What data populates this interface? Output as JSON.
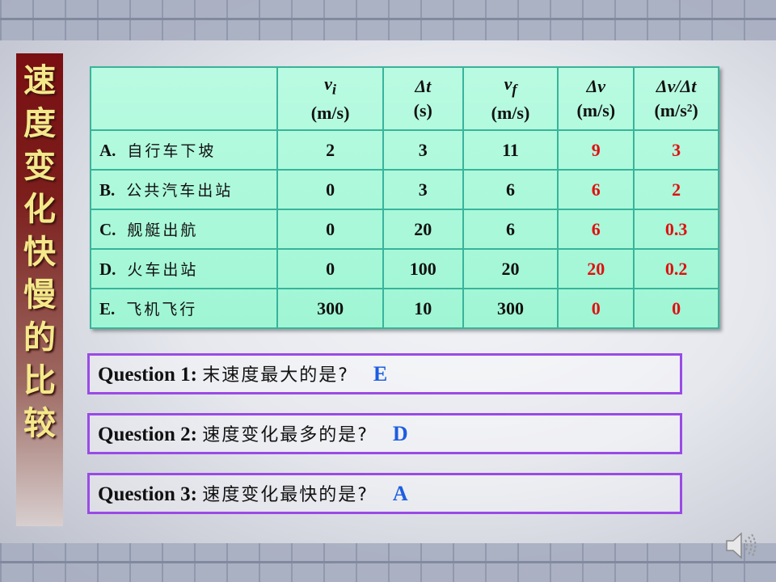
{
  "title": "速度变化快慢的比较",
  "table": {
    "headers": [
      {
        "sym": "",
        "sub": "",
        "unit": ""
      },
      {
        "sym": "v",
        "sub": "i",
        "unit": "(m/s)"
      },
      {
        "sym": "Δt",
        "sub": "",
        "unit": "(s)"
      },
      {
        "sym": "v",
        "sub": "f",
        "unit": "(m/s)"
      },
      {
        "sym": "Δv",
        "sub": "",
        "unit": "(m/s)"
      },
      {
        "sym": "Δv/Δt",
        "sub": "",
        "unit": "(m/s²)"
      }
    ],
    "rows": [
      {
        "letter": "A.",
        "name": "自行车下坡",
        "vi": "2",
        "dt": "3",
        "vf": "11",
        "dv": "9",
        "a": "3"
      },
      {
        "letter": "B.",
        "name": "公共汽车出站",
        "vi": "0",
        "dt": "3",
        "vf": "6",
        "dv": "6",
        "a": "2"
      },
      {
        "letter": "C.",
        "name": "舰艇出航",
        "vi": "0",
        "dt": "20",
        "vf": "6",
        "dv": "6",
        "a": "0.3"
      },
      {
        "letter": "D.",
        "name": "火车出站",
        "vi": "0",
        "dt": "100",
        "vf": "20",
        "dv": "20",
        "a": "0.2"
      },
      {
        "letter": "E.",
        "name": "飞机飞行",
        "vi": "300",
        "dt": "10",
        "vf": "300",
        "dv": "0",
        "a": "0"
      }
    ]
  },
  "questions": [
    {
      "label": "Question 1:",
      "text": "末速度最大的是?",
      "answer": "E"
    },
    {
      "label": "Question 2:",
      "text": "速度变化最多的是?",
      "answer": "D"
    },
    {
      "label": "Question 3:",
      "text": "速度变化最快的是?",
      "answer": "A"
    }
  ],
  "colors": {
    "answer": "#1c5de0",
    "computed": "#e01010",
    "box_border": "#9a4ae6",
    "table_bg": "#b9fbe2",
    "title_text": "#f4e98a"
  },
  "icons": {
    "audio": "speaker-icon"
  }
}
